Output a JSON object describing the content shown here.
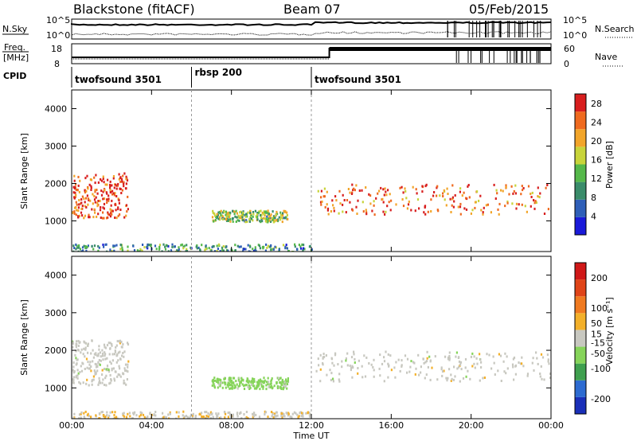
{
  "header": {
    "station": "Blackstone (fitACF)",
    "beam": "Beam 07",
    "date": "05/Feb/2015"
  },
  "strips": {
    "nsky_label": "N.Sky",
    "nsky_ticks": [
      "10^5",
      "10^0"
    ],
    "nsearch_label": "N.Search",
    "nsearch_ticks": [
      "10^5",
      "10^0"
    ],
    "freq_label_1": "Freq.",
    "freq_label_2": "[MHz]",
    "freq_ticks": [
      "18",
      "8"
    ],
    "nave_label": "Nave",
    "nave_ticks": [
      "60",
      "0"
    ],
    "cpid_label": "CPID",
    "cpid_segments": [
      {
        "label": "twofsound 3501",
        "start": 0,
        "end": 6
      },
      {
        "label": "rbsp 200",
        "start": 6,
        "end": 12
      },
      {
        "label": "twofsound 3501",
        "start": 12,
        "end": 24
      }
    ]
  },
  "chart_data": [
    {
      "type": "heatmap",
      "title": "",
      "xlabel": "Time UT",
      "ylabel": "Slant Range [km]",
      "xlim": [
        0,
        24
      ],
      "ylim": [
        180,
        4500
      ],
      "x_ticks": [
        "00:00",
        "04:00",
        "08:00",
        "12:00",
        "16:00",
        "20:00",
        "00:00"
      ],
      "y_ticks": [
        1000,
        2000,
        3000,
        4000
      ],
      "colorbar_label": "Power [dB]",
      "colorbar_ticks": [
        4,
        8,
        12,
        16,
        20,
        24,
        28
      ],
      "colorbar_range": [
        0,
        30
      ],
      "colors": [
        "#1a1ad9",
        "#2f5fb8",
        "#3a8c6a",
        "#55b84a",
        "#c8d43a",
        "#f2a52a",
        "#ef6a1f",
        "#d81e1e"
      ],
      "echo_regions": [
        {
          "name": "morning-ionospheric-band",
          "t_start": 0.0,
          "t_end": 2.8,
          "range_start": 1100,
          "range_end": 2300,
          "power": 26
        },
        {
          "name": "midday-band",
          "t_start": 7.0,
          "t_end": 10.8,
          "range_start": 1000,
          "range_end": 1300,
          "power": 14
        },
        {
          "name": "afternoon-band",
          "t_start": 12.2,
          "t_end": 24.0,
          "range_start": 1200,
          "range_end": 2000,
          "power": 24
        },
        {
          "name": "near-range-ground",
          "t_start": 0.0,
          "t_end": 12.0,
          "range_start": 200,
          "range_end": 400,
          "power": 10
        }
      ]
    },
    {
      "type": "heatmap",
      "title": "",
      "xlabel": "Time UT",
      "ylabel": "Slant Range [km]",
      "xlim": [
        0,
        24
      ],
      "ylim": [
        180,
        4500
      ],
      "x_ticks": [
        "00:00",
        "04:00",
        "08:00",
        "12:00",
        "16:00",
        "20:00",
        "00:00"
      ],
      "y_ticks": [
        1000,
        2000,
        3000,
        4000
      ],
      "colorbar_label": "Velocity [m s⁻¹]",
      "colorbar_ticks": [
        200,
        100,
        50,
        15,
        -15,
        -50,
        -100,
        -200
      ],
      "colorbar_range": [
        -250,
        250
      ],
      "colors": [
        "#1a2fb8",
        "#2d6bd1",
        "#3fa04f",
        "#86d45a",
        "#c8c8c0",
        "#f3b02a",
        "#f07a20",
        "#e04418",
        "#d01818"
      ],
      "echo_regions": [
        {
          "name": "morning-band",
          "t_start": 0.0,
          "t_end": 2.8,
          "range_start": 1100,
          "range_end": 2300,
          "velocity": 0
        },
        {
          "name": "midday-band",
          "t_start": 7.0,
          "t_end": 10.8,
          "range_start": 1000,
          "range_end": 1300,
          "velocity": -50
        },
        {
          "name": "afternoon-band",
          "t_start": 12.2,
          "t_end": 24.0,
          "range_start": 1200,
          "range_end": 2000,
          "velocity": 0
        },
        {
          "name": "near-range-ground",
          "t_start": 0.0,
          "t_end": 12.0,
          "range_start": 200,
          "range_end": 400,
          "velocity": 20
        }
      ]
    }
  ]
}
